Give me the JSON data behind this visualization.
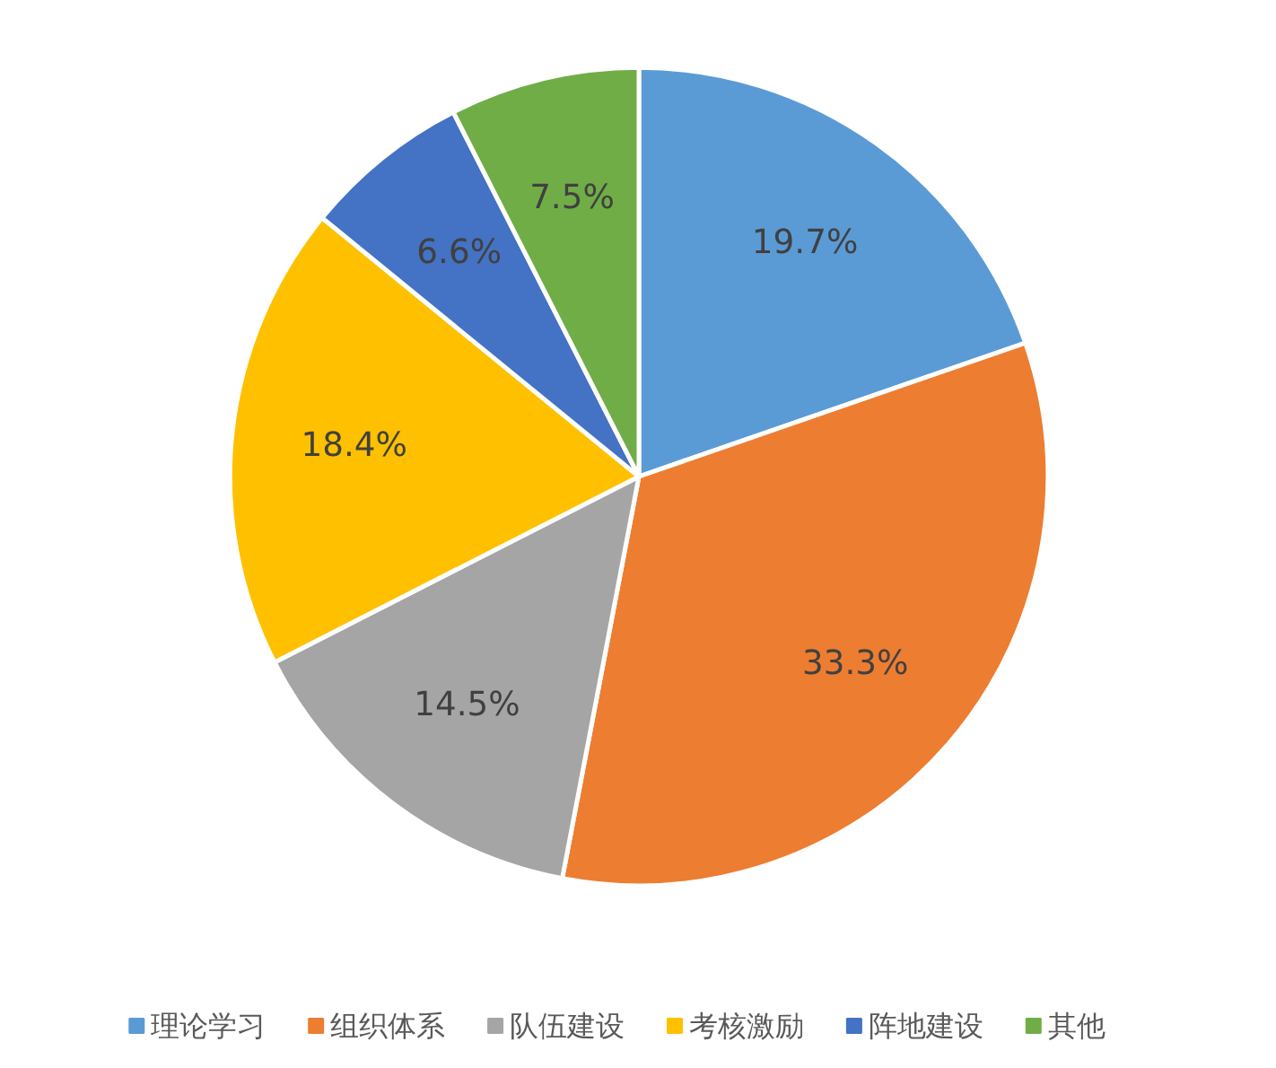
{
  "chart_data": {
    "type": "pie",
    "categories": [
      "理论学习",
      "组织体系",
      "队伍建设",
      "考核激励",
      "阵地建设",
      "其他"
    ],
    "values": [
      19.7,
      33.3,
      14.5,
      18.4,
      6.6,
      7.5
    ],
    "colors": [
      "#5b9bd5",
      "#ed7d31",
      "#a5a5a5",
      "#ffc000",
      "#4472c4",
      "#70ad47"
    ],
    "value_labels": [
      "19.7%",
      "33.3%",
      "14.5%",
      "18.4%",
      "6.6%",
      "7.5%"
    ],
    "legend": "bottom"
  }
}
